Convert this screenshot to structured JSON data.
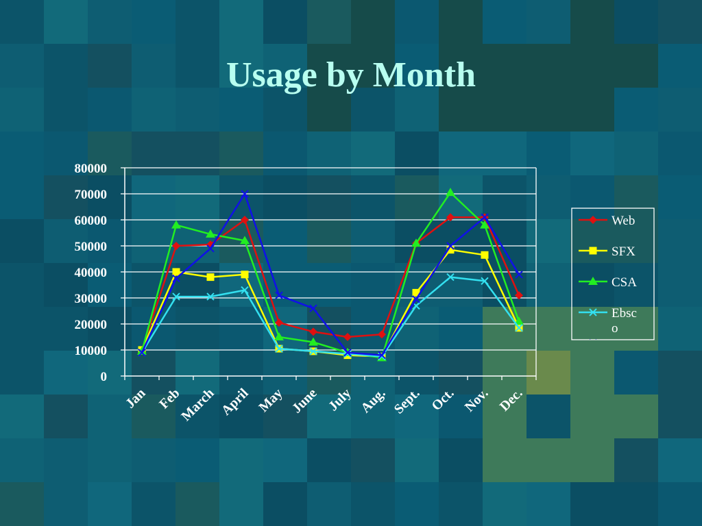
{
  "slide": {
    "title": "Usage by Month"
  },
  "colors": {
    "background": "#0d5a6e",
    "title": "#b8fff0",
    "axis": "#ffffff"
  },
  "chart_data": {
    "type": "line",
    "title": "",
    "xlabel": "",
    "ylabel": "",
    "ylim": [
      0,
      80000
    ],
    "yticks": [
      0,
      10000,
      20000,
      30000,
      40000,
      50000,
      60000,
      70000,
      80000
    ],
    "grid": true,
    "legend_position": "right",
    "categories": [
      "Jan",
      "Feb",
      "March",
      "April",
      "May",
      "June",
      "July",
      "Aug.",
      "Sept.",
      "Oct.",
      "Nov.",
      "Dec."
    ],
    "series": [
      {
        "name": "Web",
        "color": "#e01010",
        "marker": "diamond",
        "values": [
          10000,
          50000,
          50500,
          60000,
          20500,
          17000,
          15000,
          16000,
          51000,
          61000,
          61000,
          31000
        ]
      },
      {
        "name": "SFX",
        "color": "#ffff00",
        "marker": "square",
        "values": [
          10000,
          40000,
          38000,
          39000,
          10500,
          9500,
          8000,
          7500,
          32000,
          48500,
          46500,
          18500
        ]
      },
      {
        "name": "CSA",
        "color": "#22ee22",
        "marker": "triangle",
        "values": [
          9500,
          58000,
          54500,
          52000,
          15000,
          13000,
          9000,
          7000,
          51000,
          70500,
          58000,
          21000
        ]
      },
      {
        "name": "Ebsco",
        "color": "#33e0f0",
        "marker": "x",
        "values": [
          9000,
          30500,
          30500,
          33000,
          10500,
          9500,
          8500,
          7500,
          27000,
          38000,
          36500,
          18500
        ]
      },
      {
        "name": "ISI",
        "color": "#1010e8",
        "marker": "x",
        "values": [
          9000,
          37500,
          49000,
          70000,
          31000,
          26000,
          9000,
          8000,
          29500,
          50000,
          61000,
          39000
        ]
      }
    ]
  }
}
